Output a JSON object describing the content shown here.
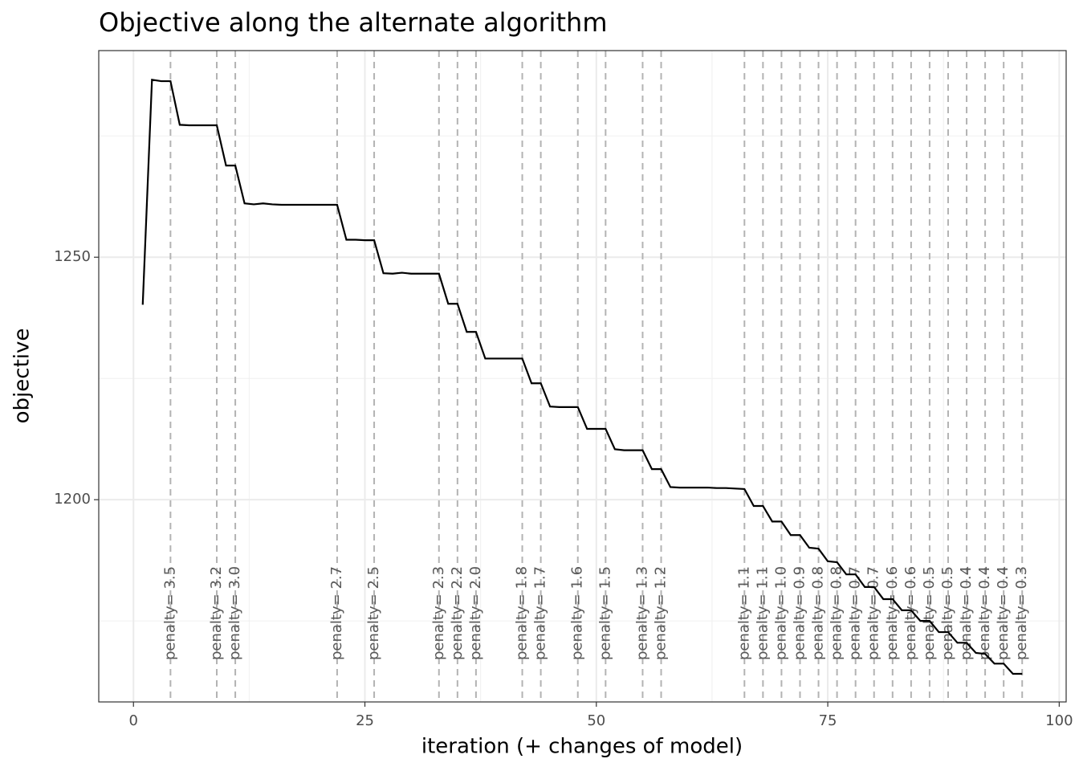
{
  "chart_data": {
    "type": "line",
    "title": "Objective along the alternate algorithm",
    "x_label": "iteration (+ changes of model)",
    "y_label": "objective",
    "x": [
      1,
      2,
      3,
      4,
      5,
      6,
      7,
      8,
      9,
      10,
      11,
      12,
      13,
      14,
      15,
      16,
      17,
      18,
      19,
      20,
      21,
      22,
      23,
      24,
      25,
      26,
      27,
      28,
      29,
      30,
      31,
      32,
      33,
      34,
      35,
      36,
      37,
      38,
      39,
      40,
      41,
      42,
      43,
      44,
      45,
      46,
      47,
      48,
      49,
      50,
      51,
      52,
      53,
      54,
      55,
      56,
      57,
      58,
      59,
      60,
      61,
      62,
      63,
      64,
      65,
      66,
      67,
      68,
      69,
      70,
      71,
      72,
      73,
      74,
      75,
      76,
      77,
      78,
      79,
      80,
      81,
      82,
      83,
      84,
      85,
      86,
      87,
      88,
      89,
      90,
      91,
      92,
      93,
      94,
      95,
      96
    ],
    "series": [
      {
        "name": "objective",
        "color": "#000000",
        "values": [
          1240.2,
          1286.6,
          1286.3,
          1286.3,
          1277.3,
          1277.2,
          1277.2,
          1277.2,
          1277.2,
          1268.9,
          1268.9,
          1261.1,
          1260.9,
          1261.1,
          1260.9,
          1260.8,
          1260.8,
          1260.8,
          1260.8,
          1260.8,
          1260.8,
          1260.8,
          1253.6,
          1253.6,
          1253.5,
          1253.5,
          1246.7,
          1246.6,
          1246.8,
          1246.6,
          1246.6,
          1246.6,
          1246.6,
          1240.4,
          1240.4,
          1234.6,
          1234.6,
          1229.1,
          1229.1,
          1229.1,
          1229.1,
          1229.1,
          1224.0,
          1224.0,
          1219.2,
          1219.1,
          1219.1,
          1219.1,
          1214.6,
          1214.6,
          1214.6,
          1210.4,
          1210.2,
          1210.2,
          1210.2,
          1206.3,
          1206.3,
          1202.6,
          1202.5,
          1202.5,
          1202.5,
          1202.5,
          1202.4,
          1202.4,
          1202.3,
          1202.2,
          1198.7,
          1198.7,
          1195.5,
          1195.5,
          1192.7,
          1192.7,
          1190.1,
          1189.9,
          1187.3,
          1187.1,
          1184.6,
          1184.6,
          1182.0,
          1182.0,
          1179.5,
          1179.5,
          1177.2,
          1177.2,
          1175.0,
          1175.0,
          1172.7,
          1172.7,
          1170.5,
          1170.5,
          1168.4,
          1168.2,
          1166.2,
          1166.2,
          1164.1,
          1164.1
        ]
      }
    ],
    "vlines": {
      "color": "#b3b3b3",
      "style": "dashed",
      "x": [
        4,
        9,
        11,
        22,
        26,
        33,
        35,
        37,
        42,
        44,
        48,
        51,
        55,
        57,
        66,
        68,
        70,
        72,
        74,
        76,
        78,
        80,
        82,
        84,
        86,
        88,
        90,
        92,
        94,
        96
      ],
      "labels": [
        "penalty= 3.5",
        "penalty= 3.2",
        "penalty= 3.0",
        "penalty= 2.7",
        "penalty= 2.5",
        "penalty= 2.3",
        "penalty= 2.2",
        "penalty= 2.0",
        "penalty= 1.8",
        "penalty= 1.7",
        "penalty= 1.6",
        "penalty= 1.5",
        "penalty= 1.3",
        "penalty= 1.2",
        "penalty= 1.1",
        "penalty= 1.1",
        "penalty= 1.0",
        "penalty= 0.9",
        "penalty= 0.8",
        "penalty= 0.8",
        "penalty= 0.7",
        "penalty= 0.7",
        "penalty= 0.6",
        "penalty= 0.6",
        "penalty= 0.5",
        "penalty= 0.5",
        "penalty= 0.4",
        "penalty= 0.4",
        "penalty= 0.4",
        "penalty= 0.3"
      ]
    },
    "xlim": [
      -3.75,
      100.75
    ],
    "ylim": [
      1158.3,
      1292.6
    ],
    "xticks": [
      0,
      25,
      50,
      75,
      100
    ],
    "yticks": [
      1200,
      1250
    ],
    "minor_xticks": [
      12.5,
      37.5,
      62.5,
      87.5
    ],
    "minor_yticks": [
      1175,
      1225,
      1275
    ],
    "grid": true
  }
}
